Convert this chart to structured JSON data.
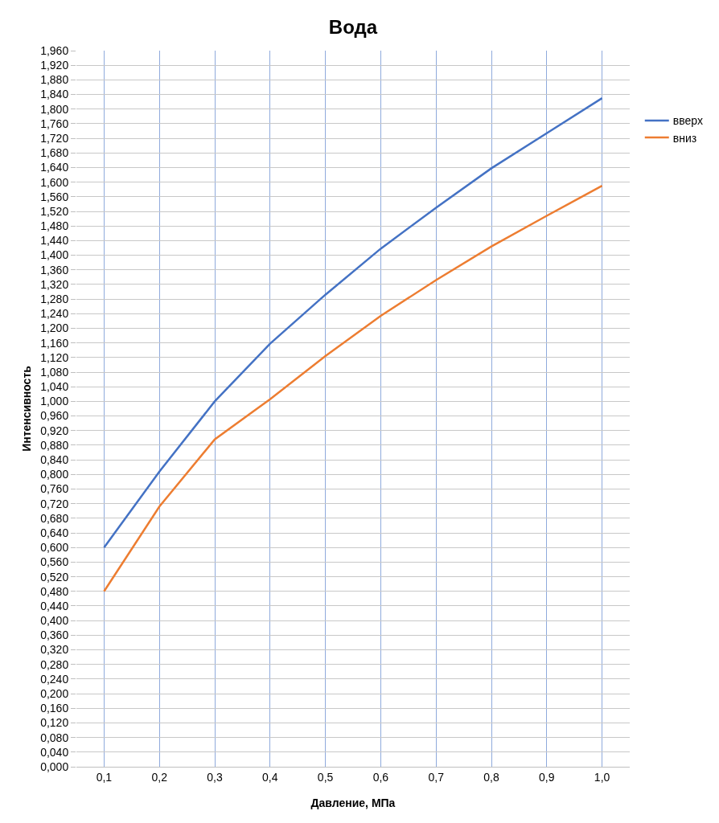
{
  "chart_data": {
    "type": "line",
    "title": "Вода",
    "xlabel": "Давление, МПа",
    "ylabel": "Интенсивность",
    "categories": [
      "0,1",
      "0,2",
      "0,3",
      "0,4",
      "0,5",
      "0,6",
      "0,7",
      "0,8",
      "0,9",
      "1,0"
    ],
    "series": [
      {
        "name": "вверх",
        "color": "#4472c4",
        "values": [
          0.6,
          0.808,
          1.0,
          1.158,
          1.292,
          1.418,
          1.53,
          1.638,
          1.734,
          1.83
        ]
      },
      {
        "name": "вниз",
        "color": "#ed7d31",
        "values": [
          0.48,
          0.712,
          0.896,
          1.006,
          1.124,
          1.234,
          1.332,
          1.424,
          1.508,
          1.59
        ]
      }
    ],
    "ylim": [
      0,
      1.96
    ],
    "yticks": [
      {
        "value": 0,
        "label": "0,000"
      },
      {
        "value": 0.04,
        "label": "0,040"
      },
      {
        "value": 0.08,
        "label": "0,080"
      },
      {
        "value": 0.12,
        "label": "0,120"
      },
      {
        "value": 0.16,
        "label": "0,160"
      },
      {
        "value": 0.2,
        "label": "0,200"
      },
      {
        "value": 0.24,
        "label": "0,240"
      },
      {
        "value": 0.28,
        "label": "0,280"
      },
      {
        "value": 0.32,
        "label": "0,320"
      },
      {
        "value": 0.36,
        "label": "0,360"
      },
      {
        "value": 0.4,
        "label": "0,400"
      },
      {
        "value": 0.44,
        "label": "0,440"
      },
      {
        "value": 0.48,
        "label": "0,480"
      },
      {
        "value": 0.52,
        "label": "0,520"
      },
      {
        "value": 0.56,
        "label": "0,560"
      },
      {
        "value": 0.6,
        "label": "0,600"
      },
      {
        "value": 0.64,
        "label": "0,640"
      },
      {
        "value": 0.68,
        "label": "0,680"
      },
      {
        "value": 0.72,
        "label": "0,720"
      },
      {
        "value": 0.76,
        "label": "0,760"
      },
      {
        "value": 0.8,
        "label": "0,800"
      },
      {
        "value": 0.84,
        "label": "0,840"
      },
      {
        "value": 0.88,
        "label": "0,880"
      },
      {
        "value": 0.92,
        "label": "0,920"
      },
      {
        "value": 0.96,
        "label": "0,960"
      },
      {
        "value": 1.0,
        "label": "1,000"
      },
      {
        "value": 1.04,
        "label": "1,040"
      },
      {
        "value": 1.08,
        "label": "1,080"
      },
      {
        "value": 1.12,
        "label": "1,120"
      },
      {
        "value": 1.16,
        "label": "1,160"
      },
      {
        "value": 1.2,
        "label": "1,200"
      },
      {
        "value": 1.24,
        "label": "1,240"
      },
      {
        "value": 1.28,
        "label": "1,280"
      },
      {
        "value": 1.32,
        "label": "1,320"
      },
      {
        "value": 1.36,
        "label": "1,360"
      },
      {
        "value": 1.4,
        "label": "1,400"
      },
      {
        "value": 1.44,
        "label": "1,440"
      },
      {
        "value": 1.48,
        "label": "1,480"
      },
      {
        "value": 1.52,
        "label": "1,520"
      },
      {
        "value": 1.56,
        "label": "1,560"
      },
      {
        "value": 1.6,
        "label": "1,600"
      },
      {
        "value": 1.64,
        "label": "1,640"
      },
      {
        "value": 1.68,
        "label": "1,680"
      },
      {
        "value": 1.72,
        "label": "1,720"
      },
      {
        "value": 1.76,
        "label": "1,760"
      },
      {
        "value": 1.8,
        "label": "1,800"
      },
      {
        "value": 1.84,
        "label": "1,840"
      },
      {
        "value": 1.88,
        "label": "1,880"
      },
      {
        "value": 1.92,
        "label": "1,920"
      },
      {
        "value": 1.96,
        "label": "1,960"
      }
    ],
    "grid": true,
    "legend": "right",
    "marker": "none",
    "line_style": "solid"
  }
}
